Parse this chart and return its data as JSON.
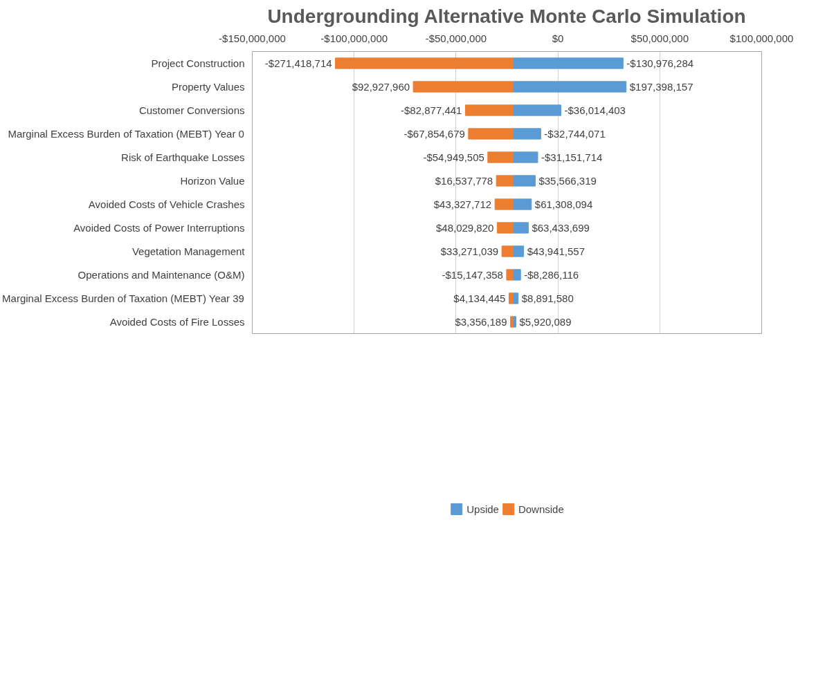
{
  "chart_data": {
    "type": "bar",
    "orientation": "horizontal",
    "title": "Undergrounding Alternative Monte Carlo Simulation",
    "categories": [
      "Project Construction",
      "Property Values",
      "Customer Conversions",
      "Marginal Excess Burden of Taxation (MEBT) Year 0",
      "Risk of Earthquake Losses",
      "Horizon Value",
      "Avoided Costs of Vehicle Crashes",
      "Avoided Costs of Power Interruptions",
      "Vegetation Management",
      "Operations and Maintenance (O&M)",
      "Marginal Excess Burden of Taxation (MEBT) Year 39",
      "Avoided Costs of Fire Losses"
    ],
    "series": [
      {
        "name": "Upside",
        "color": "#5b9bd5",
        "base": [
          -22000000,
          -22000000,
          -22000000,
          -22000000,
          -22000000,
          -22000000,
          -22000000,
          -22000000,
          -22000000,
          -22000000,
          -22000000,
          -22000000
        ],
        "values": [
          54000000,
          55500000,
          23500000,
          13600000,
          12100000,
          10900000,
          9000000,
          7500000,
          5200000,
          3700000,
          2500000,
          1400000
        ]
      },
      {
        "name": "Downside",
        "color": "#ed7d31",
        "base": [
          -22000000,
          -22000000,
          -22000000,
          -22000000,
          -22000000,
          -22000000,
          -22000000,
          -22000000,
          -22000000,
          -22000000,
          -22000000,
          -22000000
        ],
        "values": [
          -87200000,
          -49000000,
          -23400000,
          -21900000,
          -12400000,
          -8200000,
          -8900000,
          -7800000,
          -5500000,
          -3200000,
          -2000000,
          -1300000
        ]
      }
    ],
    "annotations": [
      {
        "text": "-$130,976,284",
        "x": 32000000,
        "y": "Project Construction"
      },
      {
        "text": "$197,398,157",
        "x": 33500000,
        "y": "Property Values"
      },
      {
        "text": "-$36,014,403",
        "x": 1500000,
        "y": "Customer Conversions"
      },
      {
        "text": "-$32,744,071",
        "x": -8400000,
        "y": "Marginal Excess Burden of Taxation (MEBT) Year 0"
      },
      {
        "text": "-$31,151,714",
        "x": -9900000,
        "y": "Risk of Earthquake Losses"
      },
      {
        "text": "$35,566,319",
        "x": -11100000,
        "y": "Horizon Value"
      },
      {
        "text": "$61,308,094",
        "x": -13000000,
        "y": "Avoided Costs of Vehicle Crashes"
      },
      {
        "text": "$63,433,699",
        "x": -14500000,
        "y": "Avoided Costs of Power Interruptions"
      },
      {
        "text": "$43,941,557",
        "x": -16800000,
        "y": "Vegetation Management"
      },
      {
        "text": "-$8,286,116",
        "x": -18300000,
        "y": "Operations and Maintenance (O&M)"
      },
      {
        "text": "$8,891,580",
        "x": -19500000,
        "y": "Marginal Excess Burden of Taxation (MEBT) Year 39"
      },
      {
        "text": "$5,920,089",
        "x": -20600000,
        "y": "Avoided Costs of Fire Losses"
      },
      {
        "text": "-$271,418,714",
        "x": -109200000,
        "y": "Project Construction"
      },
      {
        "text": "$92,927,960",
        "x": -71000000,
        "y": "Property Values"
      },
      {
        "text": "-$82,877,441",
        "x": -45400000,
        "y": "Customer Conversions"
      },
      {
        "text": "-$67,854,679",
        "x": -43900000,
        "y": "Marginal Excess Burden of Taxation (MEBT) Year 0"
      },
      {
        "text": "-$54,949,505",
        "x": -34400000,
        "y": "Risk of Earthquake Losses"
      },
      {
        "text": "$16,537,778",
        "x": -30200000,
        "y": "Horizon Value"
      },
      {
        "text": "$43,327,712",
        "x": -30900000,
        "y": "Avoided Costs of Vehicle Crashes"
      },
      {
        "text": "$48,029,820",
        "x": -29800000,
        "y": "Avoided Costs of Power Interruptions"
      },
      {
        "text": "$33,271,039",
        "x": -27500000,
        "y": "Vegetation Management"
      },
      {
        "text": "-$15,147,358",
        "x": -25200000,
        "y": "Operations and Maintenance (O&M)"
      },
      {
        "text": "$4,134,445",
        "x": -24000000,
        "y": "Marginal Excess Burden of Taxation (MEBT) Year 39"
      },
      {
        "text": "$3,356,189",
        "x": -23300000,
        "y": "Avoided Costs of Fire Losses"
      }
    ],
    "xlim": [
      -150000000,
      100000000
    ],
    "xticks": [
      {
        "value": -150000000,
        "label": "-$150,000,000"
      },
      {
        "value": -100000000,
        "label": "-$100,000,000"
      },
      {
        "value": -50000000,
        "label": "-$50,000,000"
      },
      {
        "value": 0,
        "label": "$0"
      },
      {
        "value": 50000000,
        "label": "$50,000,000"
      },
      {
        "value": 100000000,
        "label": "$100,000,000"
      }
    ],
    "grid": "x",
    "legend": "bottom"
  }
}
